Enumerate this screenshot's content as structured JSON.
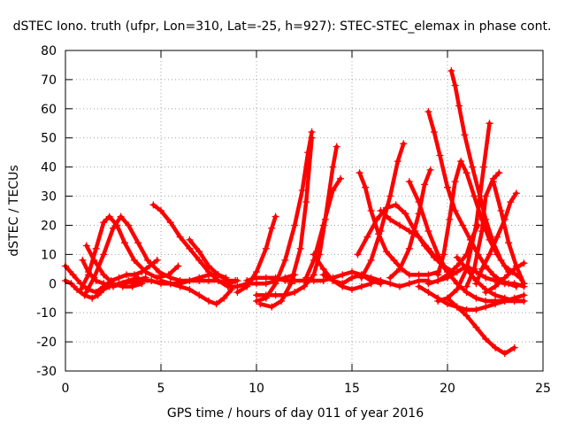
{
  "chart_data": {
    "type": "line",
    "title": "dSTEC Iono. truth (ufpr, Lon=310, Lat=-25, h=927): STEC-STEC_elemax in phase cont.",
    "xlabel": "GPS time / hours of day 011 of year 2016",
    "ylabel": "dSTEC  / TECUs",
    "xlim": [
      0,
      25
    ],
    "ylim": [
      -30,
      80
    ],
    "xticks": [
      0,
      5,
      10,
      15,
      20,
      25
    ],
    "yticks": [
      -30,
      -20,
      -10,
      0,
      10,
      20,
      30,
      40,
      50,
      60,
      70,
      80
    ],
    "grid": true,
    "color": "#ff0000",
    "marker": "plus",
    "series": [
      {
        "x": [
          0.0,
          0.4,
          0.8,
          1.2,
          1.6,
          2.0,
          2.4,
          2.8,
          3.2,
          3.6,
          4.0,
          4.4,
          4.8
        ],
        "y": [
          6,
          3,
          0,
          -2,
          -3,
          -1,
          1,
          2,
          3,
          3,
          4,
          6,
          8
        ]
      },
      {
        "x": [
          0.0,
          0.3,
          0.6,
          1.0,
          1.4,
          1.7,
          2.0,
          2.3,
          2.8,
          3.3,
          3.8
        ],
        "y": [
          1,
          0,
          -2,
          -4,
          -5,
          -4,
          -2,
          -1,
          0,
          1,
          2
        ]
      },
      {
        "x": [
          0.8,
          1.2,
          1.6,
          2.0,
          2.3,
          2.7,
          3.1,
          3.6,
          4.2,
          4.8,
          5.4,
          5.9
        ],
        "y": [
          -2,
          3,
          12,
          21,
          23,
          20,
          14,
          8,
          4,
          2,
          3,
          6
        ]
      },
      {
        "x": [
          1.0,
          1.5,
          2.0,
          2.5,
          2.9,
          3.3,
          3.8,
          4.3,
          4.9,
          5.5,
          6.0,
          6.5,
          7.0,
          7.5,
          8.0,
          8.4
        ],
        "y": [
          -4,
          2,
          10,
          19,
          23,
          20,
          14,
          8,
          4,
          2,
          1,
          1,
          2,
          3,
          3,
          2
        ]
      },
      {
        "x": [
          0.9,
          1.2,
          1.6,
          2.0,
          2.5,
          3.0,
          3.6,
          4.2
        ],
        "y": [
          8,
          4,
          1,
          0,
          -1,
          0,
          1,
          2
        ]
      },
      {
        "x": [
          1.1,
          1.5,
          2.0,
          2.5,
          3.0,
          3.5,
          4.0
        ],
        "y": [
          13,
          8,
          3,
          0,
          -1,
          -1,
          0
        ]
      },
      {
        "x": [
          4.6,
          5.0,
          5.5,
          6.0,
          6.5,
          7.0,
          7.5,
          8.0,
          8.5,
          9.0,
          9.5,
          10.0,
          10.5,
          11.0,
          11.5,
          12.0
        ],
        "y": [
          27,
          25,
          21,
          16,
          12,
          8,
          4,
          1,
          -1,
          -1,
          0,
          0,
          0,
          1,
          2,
          3
        ]
      },
      {
        "x": [
          6.5,
          7.0,
          7.5,
          8.0,
          8.5,
          8.9
        ],
        "y": [
          15,
          11,
          6,
          3,
          1,
          1
        ]
      },
      {
        "x": [
          5.0,
          5.5,
          6.0,
          6.5,
          7.0,
          7.5,
          7.9,
          8.3,
          8.7
        ],
        "y": [
          1,
          0,
          -1,
          -2,
          -4,
          -6,
          -7,
          -5,
          -2
        ]
      },
      {
        "x": [
          3.5,
          4.0,
          4.5,
          5.0,
          5.5,
          6.0,
          6.5,
          7.0,
          7.5,
          8.0,
          8.5,
          9.0
        ],
        "y": [
          0,
          1,
          1,
          0,
          0,
          0,
          1,
          1,
          1,
          1,
          0,
          1
        ]
      },
      {
        "x": [
          9.0,
          9.5,
          10.0,
          10.5,
          10.8,
          11.0
        ],
        "y": [
          -3,
          -1,
          4,
          12,
          19,
          23
        ]
      },
      {
        "x": [
          10.0,
          10.5,
          11.0,
          11.5,
          12.0,
          12.4,
          12.7,
          12.9
        ],
        "y": [
          -6,
          -5,
          0,
          8,
          20,
          32,
          45,
          52
        ]
      },
      {
        "x": [
          10.2,
          10.8,
          11.3,
          11.8,
          12.3,
          12.6,
          12.9
        ],
        "y": [
          -7,
          -8,
          -6,
          0,
          12,
          28,
          50
        ]
      },
      {
        "x": [
          10.0,
          10.5,
          11.0,
          11.5,
          12.0,
          12.5,
          13.0,
          13.3,
          13.6,
          14.0,
          14.2
        ],
        "y": [
          -4,
          -4,
          -4,
          -4,
          -3,
          -1,
          3,
          10,
          22,
          40,
          47
        ]
      },
      {
        "x": [
          12.6,
          13.0,
          13.5,
          14.0,
          14.4
        ],
        "y": [
          2,
          8,
          20,
          32,
          36
        ]
      },
      {
        "x": [
          13.5,
          14.0,
          14.5,
          15.0,
          15.5,
          16.0
        ],
        "y": [
          3,
          1,
          -1,
          -2,
          -1,
          0
        ]
      },
      {
        "x": [
          13.0,
          13.5,
          14.0,
          14.5,
          15.0,
          15.5,
          16.0,
          16.5,
          17.0,
          17.5,
          18.0,
          18.5,
          19.0
        ],
        "y": [
          10,
          5,
          1,
          0,
          2,
          3,
          2,
          1,
          0,
          -1,
          0,
          1,
          1
        ]
      },
      {
        "x": [
          15.4,
          15.7,
          16.0,
          16.4,
          16.8,
          17.2,
          17.6,
          18.0,
          18.5,
          19.0,
          19.5
        ],
        "y": [
          38,
          33,
          25,
          17,
          11,
          8,
          5,
          3,
          3,
          3,
          4
        ]
      },
      {
        "x": [
          15.5,
          16.0,
          16.5,
          17.0,
          17.4,
          17.7
        ],
        "y": [
          2,
          8,
          18,
          30,
          42,
          48
        ]
      },
      {
        "x": [
          15.3,
          15.8,
          16.3,
          16.8,
          17.3,
          17.8,
          18.3,
          18.8,
          19.3,
          19.8,
          20.3
        ],
        "y": [
          10,
          16,
          22,
          26,
          27,
          24,
          18,
          13,
          9,
          6,
          4
        ]
      },
      {
        "x": [
          16.5,
          17.0,
          17.5,
          18.0,
          18.5,
          19.0,
          19.5,
          20.0,
          20.5
        ],
        "y": [
          25,
          22,
          20,
          18,
          16,
          12,
          8,
          4,
          0
        ]
      },
      {
        "x": [
          18.0,
          18.5,
          19.0,
          19.5,
          20.0,
          20.5,
          21.0,
          21.5,
          22.0,
          22.5,
          23.0,
          23.5,
          24.0
        ],
        "y": [
          35,
          28,
          18,
          10,
          4,
          0,
          -3,
          -5,
          -6,
          -6,
          -6,
          -6,
          -6
        ]
      },
      {
        "x": [
          17.0,
          17.5,
          18.0,
          18.5,
          18.8,
          19.1
        ],
        "y": [
          2,
          5,
          12,
          24,
          34,
          39
        ]
      },
      {
        "x": [
          19.0,
          19.3,
          19.6,
          20.0,
          20.4,
          20.8,
          21.2,
          21.6,
          22.0,
          22.4,
          22.8,
          23.2,
          23.6
        ],
        "y": [
          59,
          52,
          44,
          33,
          25,
          20,
          15,
          10,
          6,
          3,
          1,
          0,
          -1
        ]
      },
      {
        "x": [
          20.2,
          20.4,
          20.6,
          20.9,
          21.3,
          21.7,
          22.0,
          22.4,
          22.8,
          23.2
        ],
        "y": [
          73,
          68,
          61,
          51,
          40,
          30,
          22,
          14,
          8,
          4
        ]
      },
      {
        "x": [
          19.5,
          19.8,
          20.1,
          20.4,
          20.7,
          21.0,
          21.4,
          21.8,
          22.2,
          22.6,
          23.0,
          23.4,
          23.8,
          24.0
        ],
        "y": [
          3,
          10,
          22,
          35,
          42,
          38,
          30,
          22,
          15,
          10,
          6,
          4,
          2,
          0
        ]
      },
      {
        "x": [
          19.0,
          19.5,
          20.0,
          20.5,
          21.0,
          21.3,
          21.6
        ],
        "y": [
          0,
          1,
          3,
          6,
          10,
          16,
          20
        ]
      },
      {
        "x": [
          19.5,
          20.0,
          20.5,
          21.0,
          21.5,
          21.9,
          22.2
        ],
        "y": [
          -6,
          -5,
          -2,
          5,
          20,
          40,
          55
        ]
      },
      {
        "x": [
          21.0,
          21.4,
          21.8,
          22.0,
          22.4,
          22.7
        ],
        "y": [
          -1,
          5,
          18,
          30,
          36,
          38
        ]
      },
      {
        "x": [
          21.5,
          21.8,
          22.2,
          22.6,
          23.0,
          23.3,
          23.6
        ],
        "y": [
          0,
          5,
          10,
          16,
          22,
          28,
          31
        ]
      },
      {
        "x": [
          22.4,
          22.8,
          23.2,
          23.6,
          24.0
        ],
        "y": [
          35,
          25,
          14,
          6,
          0
        ]
      },
      {
        "x": [
          18.5,
          19.0,
          19.5,
          20.0,
          20.5,
          21.0,
          21.5,
          22.0,
          22.5,
          23.0,
          23.5,
          24.0
        ],
        "y": [
          -1,
          -3,
          -5,
          -7,
          -8,
          -9,
          -9,
          -8,
          -7,
          -6,
          -5,
          -4
        ]
      },
      {
        "x": [
          20.0,
          20.5,
          21.0,
          21.5,
          22.0,
          22.5,
          23.0,
          23.5
        ],
        "y": [
          -5,
          -8,
          -11,
          -15,
          -19,
          -22,
          -24,
          -22
        ]
      },
      {
        "x": [
          20.5,
          21.0,
          21.5,
          22.0,
          22.5,
          23.0,
          23.5,
          24.0
        ],
        "y": [
          9,
          5,
          1,
          -2,
          -4,
          -5,
          -6,
          -6
        ]
      },
      {
        "x": [
          22.0,
          22.5,
          23.0,
          23.5,
          24.0
        ],
        "y": [
          -3,
          -1,
          2,
          5,
          7
        ]
      },
      {
        "x": [
          9.5,
          10.0,
          10.5,
          11.0,
          11.5,
          12.0,
          12.5,
          13.0,
          13.5,
          14.0,
          14.5,
          15.0,
          15.5,
          16.0,
          16.5
        ],
        "y": [
          1,
          2,
          2,
          2,
          1,
          1,
          1,
          1,
          1,
          2,
          3,
          4,
          3,
          1,
          0
        ]
      },
      {
        "x": [
          19.5,
          20.0,
          20.5,
          21.0,
          21.5,
          22.0,
          22.5,
          23.0,
          23.5,
          24.0
        ],
        "y": [
          1,
          2,
          4,
          6,
          4,
          2,
          1,
          0,
          0,
          -1
        ]
      }
    ]
  }
}
